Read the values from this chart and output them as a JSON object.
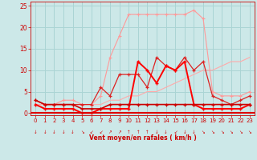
{
  "xlabel": "Vent moyen/en rafales ( km/h )",
  "background_color": "#cce8e8",
  "grid_color": "#aad4d4",
  "x": [
    0,
    1,
    2,
    3,
    4,
    5,
    6,
    7,
    8,
    9,
    10,
    11,
    12,
    13,
    14,
    15,
    16,
    17,
    18,
    19,
    20,
    21,
    22,
    23
  ],
  "line_pink_rafales": [
    3,
    2,
    2,
    3,
    3,
    2,
    2,
    4,
    13,
    18,
    23,
    23,
    23,
    23,
    23,
    23,
    23,
    24,
    22,
    5,
    4,
    4,
    4,
    5
  ],
  "line_medium_red": [
    3,
    2,
    2,
    2,
    2,
    2,
    2,
    6,
    4,
    9,
    9,
    9,
    6,
    13,
    11,
    10,
    13,
    10,
    12,
    4,
    3,
    2,
    3,
    4
  ],
  "line_trend": [
    2,
    2,
    2,
    2,
    2,
    2,
    2,
    2,
    3,
    3,
    4,
    4,
    5,
    5,
    6,
    7,
    8,
    9,
    10,
    10,
    11,
    12,
    12,
    13
  ],
  "line_bright_red": [
    2,
    1,
    1,
    1,
    1,
    0,
    0,
    1,
    1,
    1,
    1,
    12,
    10,
    7,
    11,
    10,
    12,
    2,
    1,
    1,
    1,
    1,
    1,
    2
  ],
  "line_dark_red": [
    3,
    2,
    2,
    2,
    2,
    1,
    1,
    1,
    2,
    2,
    2,
    2,
    2,
    2,
    2,
    2,
    2,
    2,
    2,
    2,
    2,
    2,
    2,
    2
  ],
  "ylim": [
    -0.5,
    26
  ],
  "xlim": [
    -0.5,
    23.5
  ],
  "yticks": [
    0,
    5,
    10,
    15,
    20,
    25
  ],
  "xticks": [
    0,
    1,
    2,
    3,
    4,
    5,
    6,
    7,
    8,
    9,
    10,
    11,
    12,
    13,
    14,
    15,
    16,
    17,
    18,
    19,
    20,
    21,
    22,
    23
  ],
  "color_pink": "#ff9999",
  "color_medium_red": "#dd2222",
  "color_trend": "#ffaaaa",
  "color_bright_red": "#ff0000",
  "color_dark_red": "#cc0000",
  "color_axis": "#dd0000",
  "tick_color": "#cc0000",
  "label_color": "#cc0000"
}
